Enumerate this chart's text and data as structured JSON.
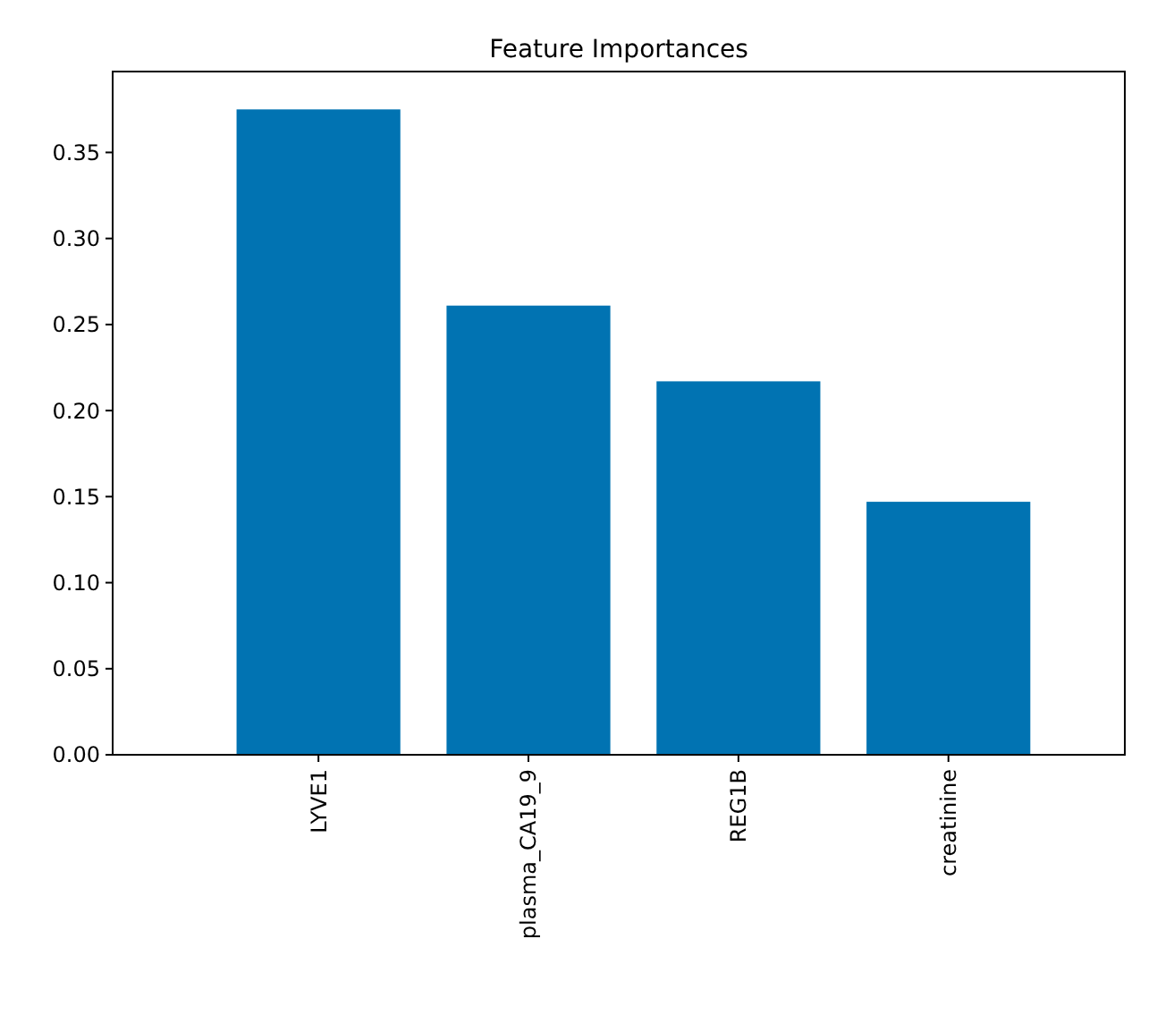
{
  "chart_data": {
    "type": "bar",
    "title": "Feature Importances",
    "categories": [
      "LYVE1",
      "plasma_CA19_9",
      "REG1B",
      "creatinine"
    ],
    "values": [
      0.375,
      0.261,
      0.217,
      0.147
    ],
    "color": "#0173b2",
    "ylim": [
      0,
      0.397
    ],
    "yticks": [
      {
        "value": 0,
        "label": "0.00"
      },
      {
        "value": 0.05,
        "label": "0.05"
      },
      {
        "value": 0.1,
        "label": "0.10"
      },
      {
        "value": 0.15,
        "label": "0.15"
      },
      {
        "value": 0.2,
        "label": "0.20"
      },
      {
        "value": 0.25,
        "label": "0.25"
      },
      {
        "value": 0.3,
        "label": "0.30"
      },
      {
        "value": 0.35,
        "label": "0.35"
      }
    ],
    "grid": false
  }
}
